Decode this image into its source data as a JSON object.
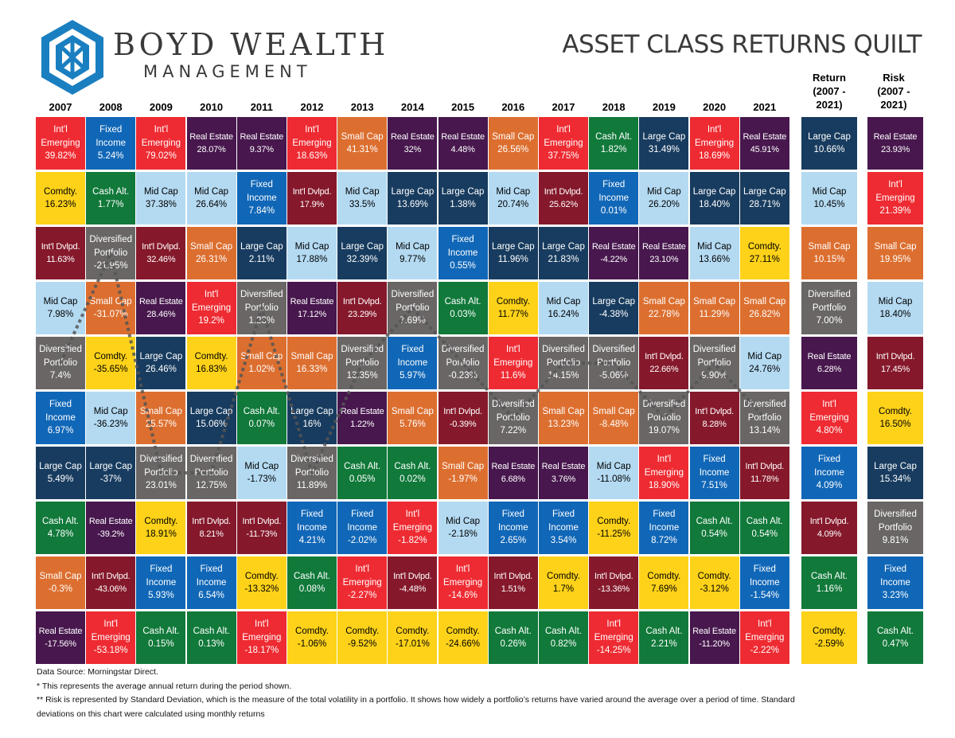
{
  "header": {
    "brand_name": "BOYD WEALTH",
    "brand_sub": "MANAGEMENT",
    "title": "ASSET CLASS RETURNS QUILT"
  },
  "side_headers": {
    "return": [
      "Return",
      "(2007 -",
      "2021)"
    ],
    "risk": [
      "Risk",
      "(2007 -",
      "2021)"
    ]
  },
  "colors": {
    "Int'l Emerging": "#ee2b32",
    "Fixed Income": "#1167b7",
    "Real Estate": "#47174d",
    "Small Cap": "#dc6f30",
    "Cash Alt.": "#11793a",
    "Large Cap": "#183c5f",
    "Comdty.": "#fdd219",
    "Mid Cap": "#b4daf2",
    "Int'l Dvlpd.": "#85192b",
    "Diversified Portfolio": "#6a6666"
  },
  "dark_text_classes": [
    "Comdty.",
    "Mid Cap"
  ],
  "footer": {
    "source": "Data Source: Morningstar Direct.",
    "note1": "* This represents the average annual return during the period shown.",
    "note2": "** Risk is represented by Standard Deviation, which is the measure of the total volatility in a portfolio. It shows how widely a portfolio’s returns have varied around the average over a period of time. Standard deviations on this chart were calculated using monthly returns"
  },
  "chart_data": {
    "type": "table",
    "title": "ASSET CLASS RETURNS QUILT",
    "years": [
      "2007",
      "2008",
      "2009",
      "2010",
      "2011",
      "2012",
      "2013",
      "2014",
      "2015",
      "2016",
      "2017",
      "2018",
      "2019",
      "2020",
      "2021"
    ],
    "columns": [
      [
        [
          "Int'l Emerging",
          "39.82%"
        ],
        [
          "Comdty.",
          "16.23%"
        ],
        [
          "Int'l Dvlpd.",
          "11.63%"
        ],
        [
          "Mid Cap",
          "7.98%"
        ],
        [
          "Diversified Portfolio",
          "7.4%"
        ],
        [
          "Fixed Income",
          "6.97%"
        ],
        [
          "Large Cap",
          "5.49%"
        ],
        [
          "Cash Alt.",
          "4.78%"
        ],
        [
          "Small Cap",
          "-0.3%"
        ],
        [
          "Real Estate",
          "-17.56%"
        ]
      ],
      [
        [
          "Fixed Income",
          "5.24%"
        ],
        [
          "Cash Alt.",
          "1.77%"
        ],
        [
          "Diversified Portfolio",
          "-21.95%"
        ],
        [
          "Small Cap",
          "-31.07%"
        ],
        [
          "Comdty.",
          "-35.65%"
        ],
        [
          "Mid Cap",
          "-36.23%"
        ],
        [
          "Large Cap",
          "-37%"
        ],
        [
          "Real Estate",
          "-39.2%"
        ],
        [
          "Int'l Dvlpd.",
          "-43.06%"
        ],
        [
          "Int'l Emerging",
          "-53.18%"
        ]
      ],
      [
        [
          "Int'l Emerging",
          "79.02%"
        ],
        [
          "Mid Cap",
          "37.38%"
        ],
        [
          "Int'l Dvlpd.",
          "32.46%"
        ],
        [
          "Real Estate",
          "28.46%"
        ],
        [
          "Large Cap",
          "26.46%"
        ],
        [
          "Small Cap",
          "25.57%"
        ],
        [
          "Diversified Portfolio",
          "23.01%"
        ],
        [
          "Comdty.",
          "18.91%"
        ],
        [
          "Fixed Income",
          "5.93%"
        ],
        [
          "Cash Alt.",
          "0.15%"
        ]
      ],
      [
        [
          "Real Estate",
          "28.07%"
        ],
        [
          "Mid Cap",
          "26.64%"
        ],
        [
          "Small Cap",
          "26.31%"
        ],
        [
          "Int'l Emerging",
          "19.2%"
        ],
        [
          "Comdty.",
          "16.83%"
        ],
        [
          "Large Cap",
          "15.06%"
        ],
        [
          "Diversified Portfolio",
          "12.75%"
        ],
        [
          "Int'l Dvlpd.",
          "8.21%"
        ],
        [
          "Fixed Income",
          "6.54%"
        ],
        [
          "Cash Alt.",
          "0.13%"
        ]
      ],
      [
        [
          "Real Estate",
          "9.37%"
        ],
        [
          "Fixed Income",
          "7.84%"
        ],
        [
          "Large Cap",
          "2.11%"
        ],
        [
          "Diversified Portfolio",
          "1.23%"
        ],
        [
          "Small Cap",
          "1.02%"
        ],
        [
          "Cash Alt.",
          "0.07%"
        ],
        [
          "Mid Cap",
          "-1.73%"
        ],
        [
          "Int'l Dvlpd.",
          "-11.73%"
        ],
        [
          "Comdty.",
          "-13.32%"
        ],
        [
          "Int'l Emerging",
          "-18.17%"
        ]
      ],
      [
        [
          "Int'l Emerging",
          "18.63%"
        ],
        [
          "Int'l Dvlpd.",
          "17.9%"
        ],
        [
          "Mid Cap",
          "17.88%"
        ],
        [
          "Real Estate",
          "17.12%"
        ],
        [
          "Small Cap",
          "16.33%"
        ],
        [
          "Large Cap",
          "16%"
        ],
        [
          "Diversified Portfolio",
          "11.89%"
        ],
        [
          "Fixed Income",
          "4.21%"
        ],
        [
          "Cash Alt.",
          "0.08%"
        ],
        [
          "Comdty.",
          "-1.06%"
        ]
      ],
      [
        [
          "Small Cap",
          "41.31%"
        ],
        [
          "Mid Cap",
          "33.5%"
        ],
        [
          "Large Cap",
          "32.39%"
        ],
        [
          "Int'l Dvlpd.",
          "23.29%"
        ],
        [
          "Diversified Portfolio",
          "13.35%"
        ],
        [
          "Real Estate",
          "1.22%"
        ],
        [
          "Cash Alt.",
          "0.05%"
        ],
        [
          "Fixed Income",
          "-2.02%"
        ],
        [
          "Int'l Emerging",
          "-2.27%"
        ],
        [
          "Comdty.",
          "-9.52%"
        ]
      ],
      [
        [
          "Real Estate",
          "32%"
        ],
        [
          "Large Cap",
          "13.69%"
        ],
        [
          "Mid Cap",
          "9.77%"
        ],
        [
          "Diversified Portfolio",
          "7.69%"
        ],
        [
          "Fixed Income",
          "5.97%"
        ],
        [
          "Small Cap",
          "5.76%"
        ],
        [
          "Cash Alt.",
          "0.02%"
        ],
        [
          "Int'l Emerging",
          "-1.82%"
        ],
        [
          "Int'l Dvlpd.",
          "-4.48%"
        ],
        [
          "Comdty.",
          "-17.01%"
        ]
      ],
      [
        [
          "Real Estate",
          "4.48%"
        ],
        [
          "Large Cap",
          "1.38%"
        ],
        [
          "Fixed Income",
          "0.55%"
        ],
        [
          "Cash Alt.",
          "0.03%"
        ],
        [
          "Diversified Portfolio",
          "-0.23%"
        ],
        [
          "Int'l Dvlpd.",
          "-0.39%"
        ],
        [
          "Small Cap",
          "-1.97%"
        ],
        [
          "Mid Cap",
          "-2.18%"
        ],
        [
          "Int'l Emerging",
          "-14.6%"
        ],
        [
          "Comdty.",
          "-24.66%"
        ]
      ],
      [
        [
          "Small Cap",
          "26.56%"
        ],
        [
          "Mid Cap",
          "20.74%"
        ],
        [
          "Large Cap",
          "11.96%"
        ],
        [
          "Comdty.",
          "11.77%"
        ],
        [
          "Int'l Emerging",
          "11.6%"
        ],
        [
          "Diversified Portfolio",
          "7.22%"
        ],
        [
          "Real Estate",
          "6.68%"
        ],
        [
          "Fixed Income",
          "2.65%"
        ],
        [
          "Int'l Dvlpd.",
          "1.51%"
        ],
        [
          "Cash Alt.",
          "0.26%"
        ]
      ],
      [
        [
          "Int'l Emerging",
          "37.75%"
        ],
        [
          "Int'l Dvlpd.",
          "25.62%"
        ],
        [
          "Large Cap",
          "21.83%"
        ],
        [
          "Mid Cap",
          "16.24%"
        ],
        [
          "Diversified Portfolio",
          "14.15%"
        ],
        [
          "Small Cap",
          "13.23%"
        ],
        [
          "Real Estate",
          "3.76%"
        ],
        [
          "Fixed Income",
          "3.54%"
        ],
        [
          "Comdty.",
          "1.7%"
        ],
        [
          "Cash Alt.",
          "0.82%"
        ]
      ],
      [
        [
          "Cash Alt.",
          "1.82%"
        ],
        [
          "Fixed Income",
          "0.01%"
        ],
        [
          "Real Estate",
          "-4.22%"
        ],
        [
          "Large Cap",
          "-4.38%"
        ],
        [
          "Diversified Portfolio",
          "-5.06%"
        ],
        [
          "Small Cap",
          "-8.48%"
        ],
        [
          "Mid Cap",
          "-11.08%"
        ],
        [
          "Comdty.",
          "-11.25%"
        ],
        [
          "Int'l Dvlpd.",
          "-13.36%"
        ],
        [
          "Int'l Emerging",
          "-14.25%"
        ]
      ],
      [
        [
          "Large Cap",
          "31.49%"
        ],
        [
          "Mid Cap",
          "26.20%"
        ],
        [
          "Real Estate",
          "23.10%"
        ],
        [
          "Small Cap",
          "22.78%"
        ],
        [
          "Int'l Dvlpd.",
          "22.66%"
        ],
        [
          "Diversified Portfolio",
          "19.07%"
        ],
        [
          "Int'l Emerging",
          "18.90%"
        ],
        [
          "Fixed Income",
          "8.72%"
        ],
        [
          "Comdty.",
          "7.69%"
        ],
        [
          "Cash Alt.",
          "2.21%"
        ]
      ],
      [
        [
          "Int'l Emerging",
          "18.69%"
        ],
        [
          "Large Cap",
          "18.40%"
        ],
        [
          "Mid Cap",
          "13.66%"
        ],
        [
          "Small Cap",
          "11.29%"
        ],
        [
          "Diversified Portfolio",
          "9.90%"
        ],
        [
          "Int'l Dvlpd.",
          "8.28%"
        ],
        [
          "Fixed Income",
          "7.51%"
        ],
        [
          "Cash Alt.",
          "0.54%"
        ],
        [
          "Comdty.",
          "-3.12%"
        ],
        [
          "Real Estate",
          "-11.20%"
        ]
      ],
      [
        [
          "Real Estate",
          "45.91%"
        ],
        [
          "Large Cap",
          "28.71%"
        ],
        [
          "Comdty.",
          "27.11%"
        ],
        [
          "Small Cap",
          "26.82%"
        ],
        [
          "Mid Cap",
          "24.76%"
        ],
        [
          "Diversified Portfolio",
          "13.14%"
        ],
        [
          "Int'l Dvlpd.",
          "11.78%"
        ],
        [
          "Cash Alt.",
          "0.54%"
        ],
        [
          "Fixed Income",
          "-1.54%"
        ],
        [
          "Int'l Emerging",
          "-2.22%"
        ]
      ]
    ],
    "return_2007_2021": [
      [
        "Large Cap",
        "10.66%"
      ],
      [
        "Mid Cap",
        "10.45%"
      ],
      [
        "Small Cap",
        "10.15%"
      ],
      [
        "Diversified Portfolio",
        "7.00%"
      ],
      [
        "Real Estate",
        "6.28%"
      ],
      [
        "Int'l Emerging",
        "4.80%"
      ],
      [
        "Fixed Income",
        "4.09%"
      ],
      [
        "Int'l Dvlpd.",
        "4.09%"
      ],
      [
        "Cash Alt.",
        "1.16%"
      ],
      [
        "Comdty.",
        "-2.59%"
      ]
    ],
    "risk_2007_2021": [
      [
        "Real Estate",
        "23.93%"
      ],
      [
        "Int'l Emerging",
        "21.39%"
      ],
      [
        "Small Cap",
        "19.95%"
      ],
      [
        "Mid Cap",
        "18.40%"
      ],
      [
        "Int'l Dvlpd.",
        "17.45%"
      ],
      [
        "Comdty.",
        "16.50%"
      ],
      [
        "Large Cap",
        "15.34%"
      ],
      [
        "Diversified Portfolio",
        "9.81%"
      ],
      [
        "Fixed Income",
        "3.23%"
      ],
      [
        "Cash Alt.",
        "0.47%"
      ]
    ]
  }
}
